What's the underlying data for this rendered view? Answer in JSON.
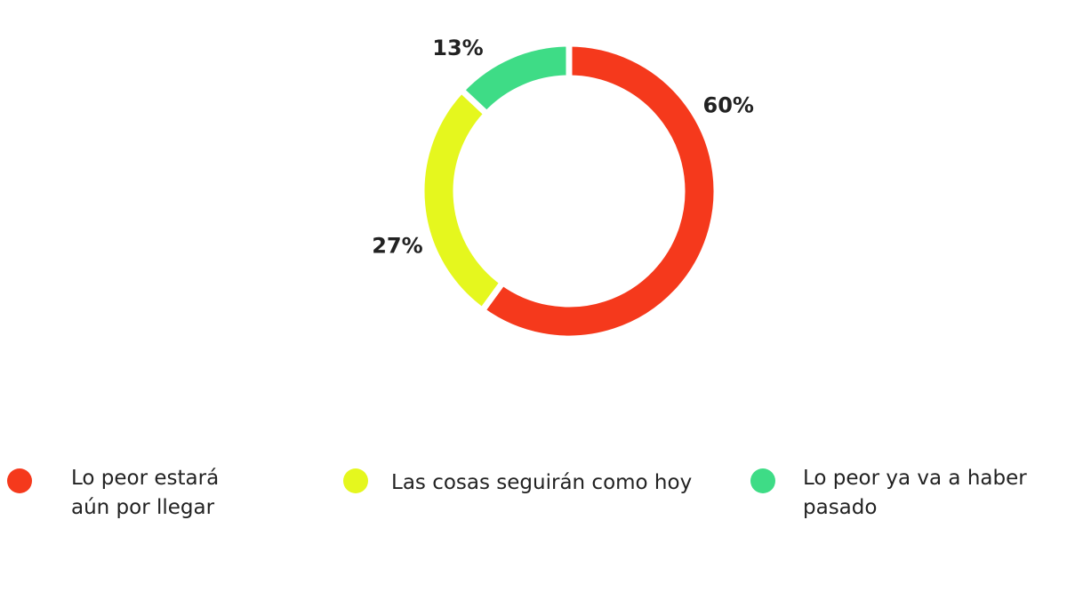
{
  "chart_data": {
    "type": "donut",
    "categories": [
      "Lo peor estará aún por llegar",
      "Las cosas seguirán como hoy",
      "Lo peor ya va a haber pasado"
    ],
    "values": [
      60,
      27,
      13
    ],
    "value_labels": [
      "60%",
      "27%",
      "13%"
    ],
    "colors": [
      "#f5391c",
      "#e5f71e",
      "#3edc86"
    ]
  }
}
